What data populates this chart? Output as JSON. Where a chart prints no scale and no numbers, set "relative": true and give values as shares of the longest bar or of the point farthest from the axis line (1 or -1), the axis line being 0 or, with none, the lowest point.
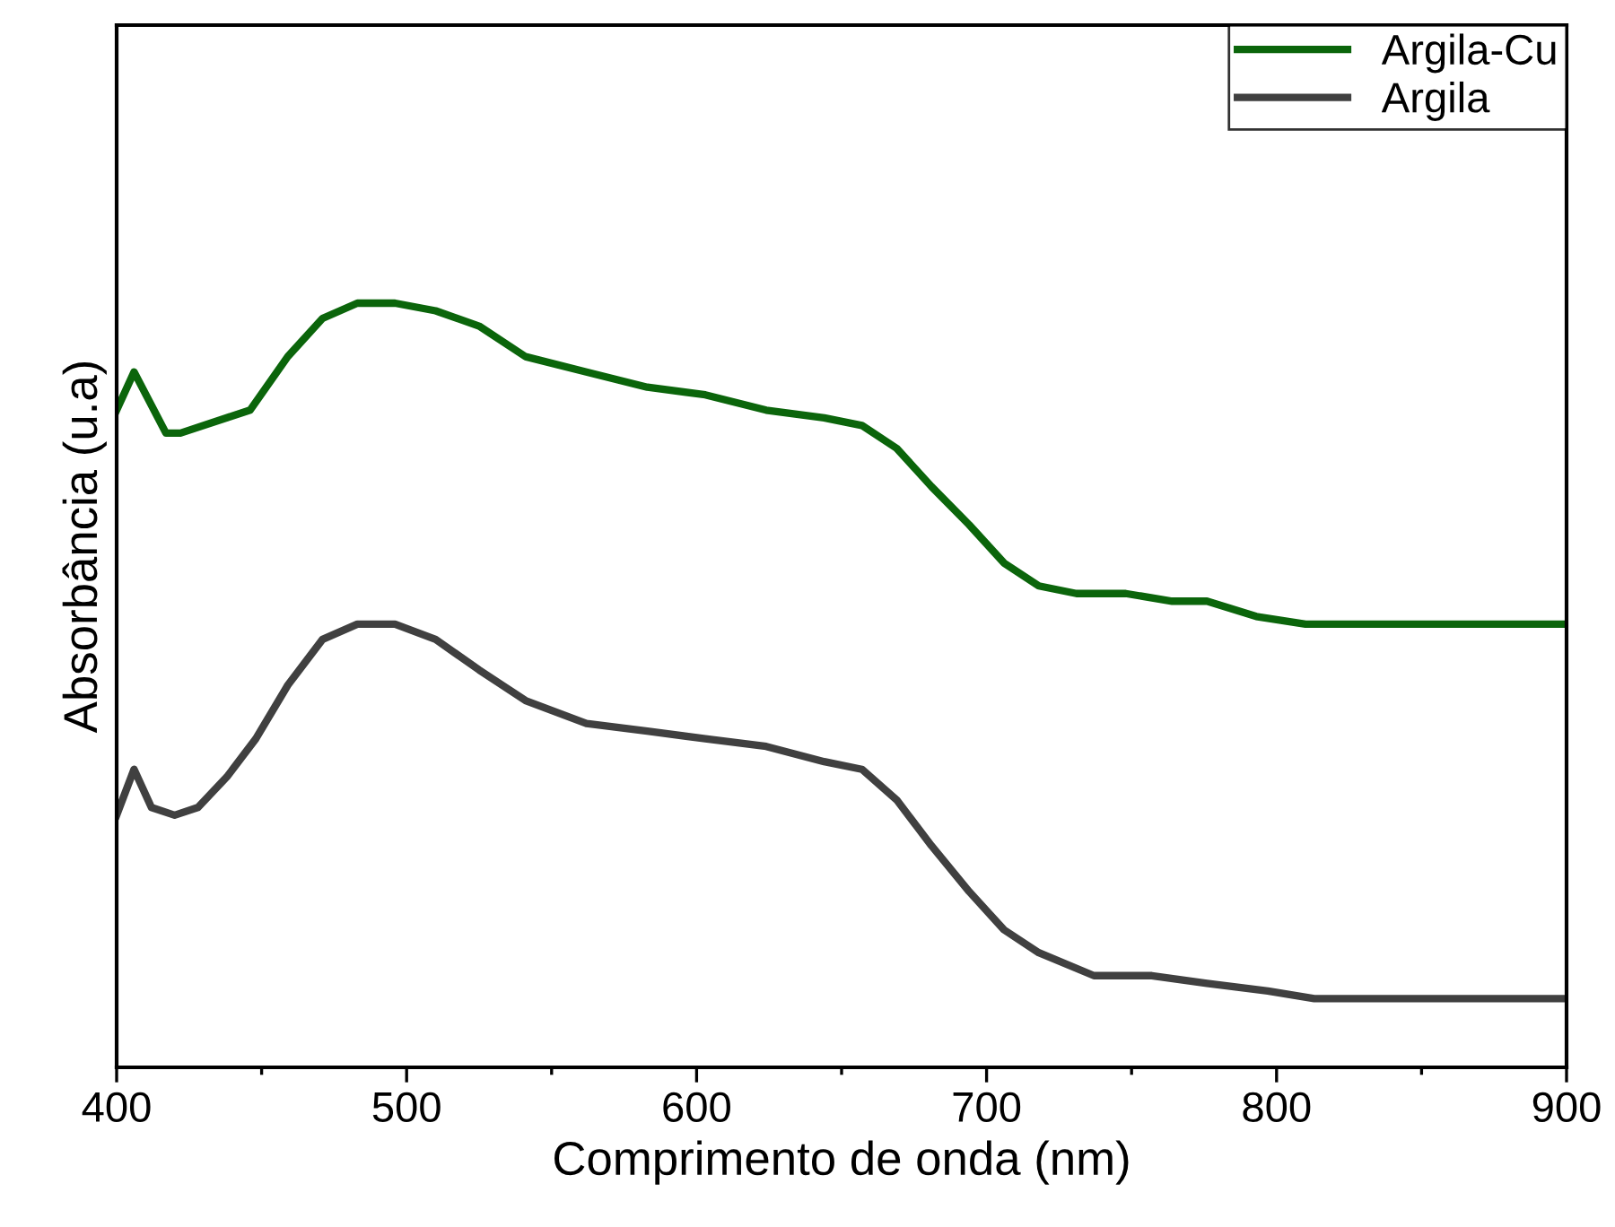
{
  "chart_data": {
    "type": "line",
    "xlabel": "Comprimento de onda (nm)",
    "ylabel": "Absorbância (u.a)",
    "relative": true,
    "xlim": [
      400,
      900
    ],
    "xticks": [
      400,
      {
        "value": 450,
        "label": null
      },
      500,
      {
        "value": 550,
        "label": null
      },
      600,
      {
        "value": 650,
        "label": null
      },
      700,
      {
        "value": 750,
        "label": null
      },
      800,
      {
        "value": 850,
        "label": null
      },
      900
    ],
    "legend": "top right",
    "grid": false,
    "marker": "none",
    "line_style": "solid",
    "series": [
      {
        "name": "Argila-Cu",
        "color": "#0b650b",
        "x": [
          400,
          406,
          417,
          422,
          438,
          446,
          459,
          471,
          483,
          496,
          510,
          525,
          541,
          562,
          583,
          603,
          624,
          644,
          657,
          669,
          681,
          694,
          706,
          718,
          731,
          748,
          764,
          776,
          793,
          810,
          830,
          900
        ],
        "values": [
          0.86,
          0.91,
          0.83,
          0.83,
          0.85,
          0.86,
          0.93,
          0.98,
          1.0,
          1.0,
          0.99,
          0.97,
          0.93,
          0.91,
          0.89,
          0.88,
          0.86,
          0.85,
          0.84,
          0.81,
          0.76,
          0.71,
          0.66,
          0.63,
          0.62,
          0.62,
          0.61,
          0.61,
          0.59,
          0.58,
          0.58,
          0.58
        ]
      },
      {
        "name": "Argila",
        "color": "#404040",
        "x": [
          400,
          406,
          412,
          420,
          428,
          438,
          448,
          459,
          471,
          483,
          496,
          510,
          525,
          541,
          562,
          583,
          603,
          624,
          644,
          657,
          669,
          681,
          694,
          706,
          718,
          737,
          757,
          776,
          797,
          813,
          840,
          900
        ],
        "values": [
          0.33,
          0.39,
          0.34,
          0.33,
          0.34,
          0.38,
          0.43,
          0.5,
          0.56,
          0.58,
          0.58,
          0.56,
          0.52,
          0.48,
          0.45,
          0.44,
          0.43,
          0.42,
          0.4,
          0.39,
          0.35,
          0.29,
          0.23,
          0.18,
          0.15,
          0.12,
          0.12,
          0.11,
          0.1,
          0.09,
          0.09,
          0.09
        ]
      }
    ]
  }
}
